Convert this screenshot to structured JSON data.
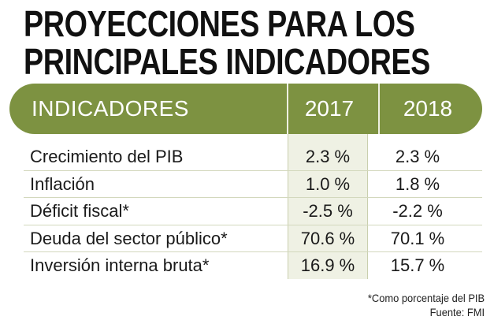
{
  "title_lines": [
    "PROYECCIONES PARA LOS",
    "PRINCIPALES INDICADORES"
  ],
  "chart_data": {
    "type": "table",
    "columns": [
      "INDICADORES",
      "2017",
      "2018"
    ],
    "rows": [
      {
        "label": "Crecimiento del PIB",
        "v2017": "2.3 %",
        "v2018": "2.3 %"
      },
      {
        "label": "Inflación",
        "v2017": "1.0 %",
        "v2018": "1.8 %"
      },
      {
        "label": "Déficit fiscal*",
        "v2017": "-2.5 %",
        "v2018": "-2.2 %"
      },
      {
        "label": "Deuda del sector público*",
        "v2017": "70.6 %",
        "v2018": "70.1 %"
      },
      {
        "label": "Inversión interna bruta*",
        "v2017": "16.9 %",
        "v2018": "15.7 %"
      }
    ]
  },
  "notes": {
    "footnote": "*Como porcentaje del PIB",
    "source": "Fuente: FMI"
  },
  "colors": {
    "header_bg": "#7d9241",
    "column_band": "#eff1e4"
  }
}
